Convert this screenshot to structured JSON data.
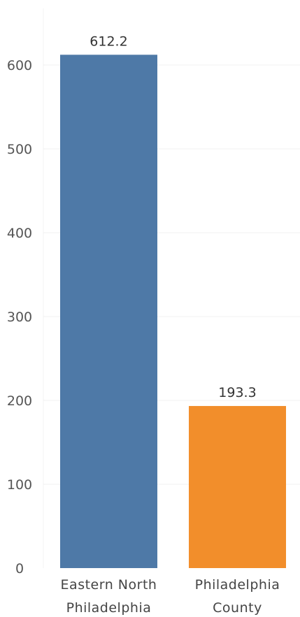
{
  "chart_data": {
    "type": "bar",
    "categories": [
      [
        "Eastern North",
        "Philadelphia"
      ],
      [
        "Philadelphia",
        "County"
      ]
    ],
    "values": [
      612.2,
      193.3
    ],
    "data_labels": [
      "612.2",
      "193.3"
    ],
    "yticks": [
      0,
      100,
      200,
      300,
      400,
      500,
      600
    ],
    "ytick_labels": [
      "0",
      "100",
      "200",
      "300",
      "400",
      "500",
      "600"
    ],
    "ylim": [
      0,
      680
    ],
    "grid": true,
    "colors": [
      "#4e79a7",
      "#f28e2b"
    ],
    "title": "",
    "xlabel": "",
    "ylabel": ""
  }
}
